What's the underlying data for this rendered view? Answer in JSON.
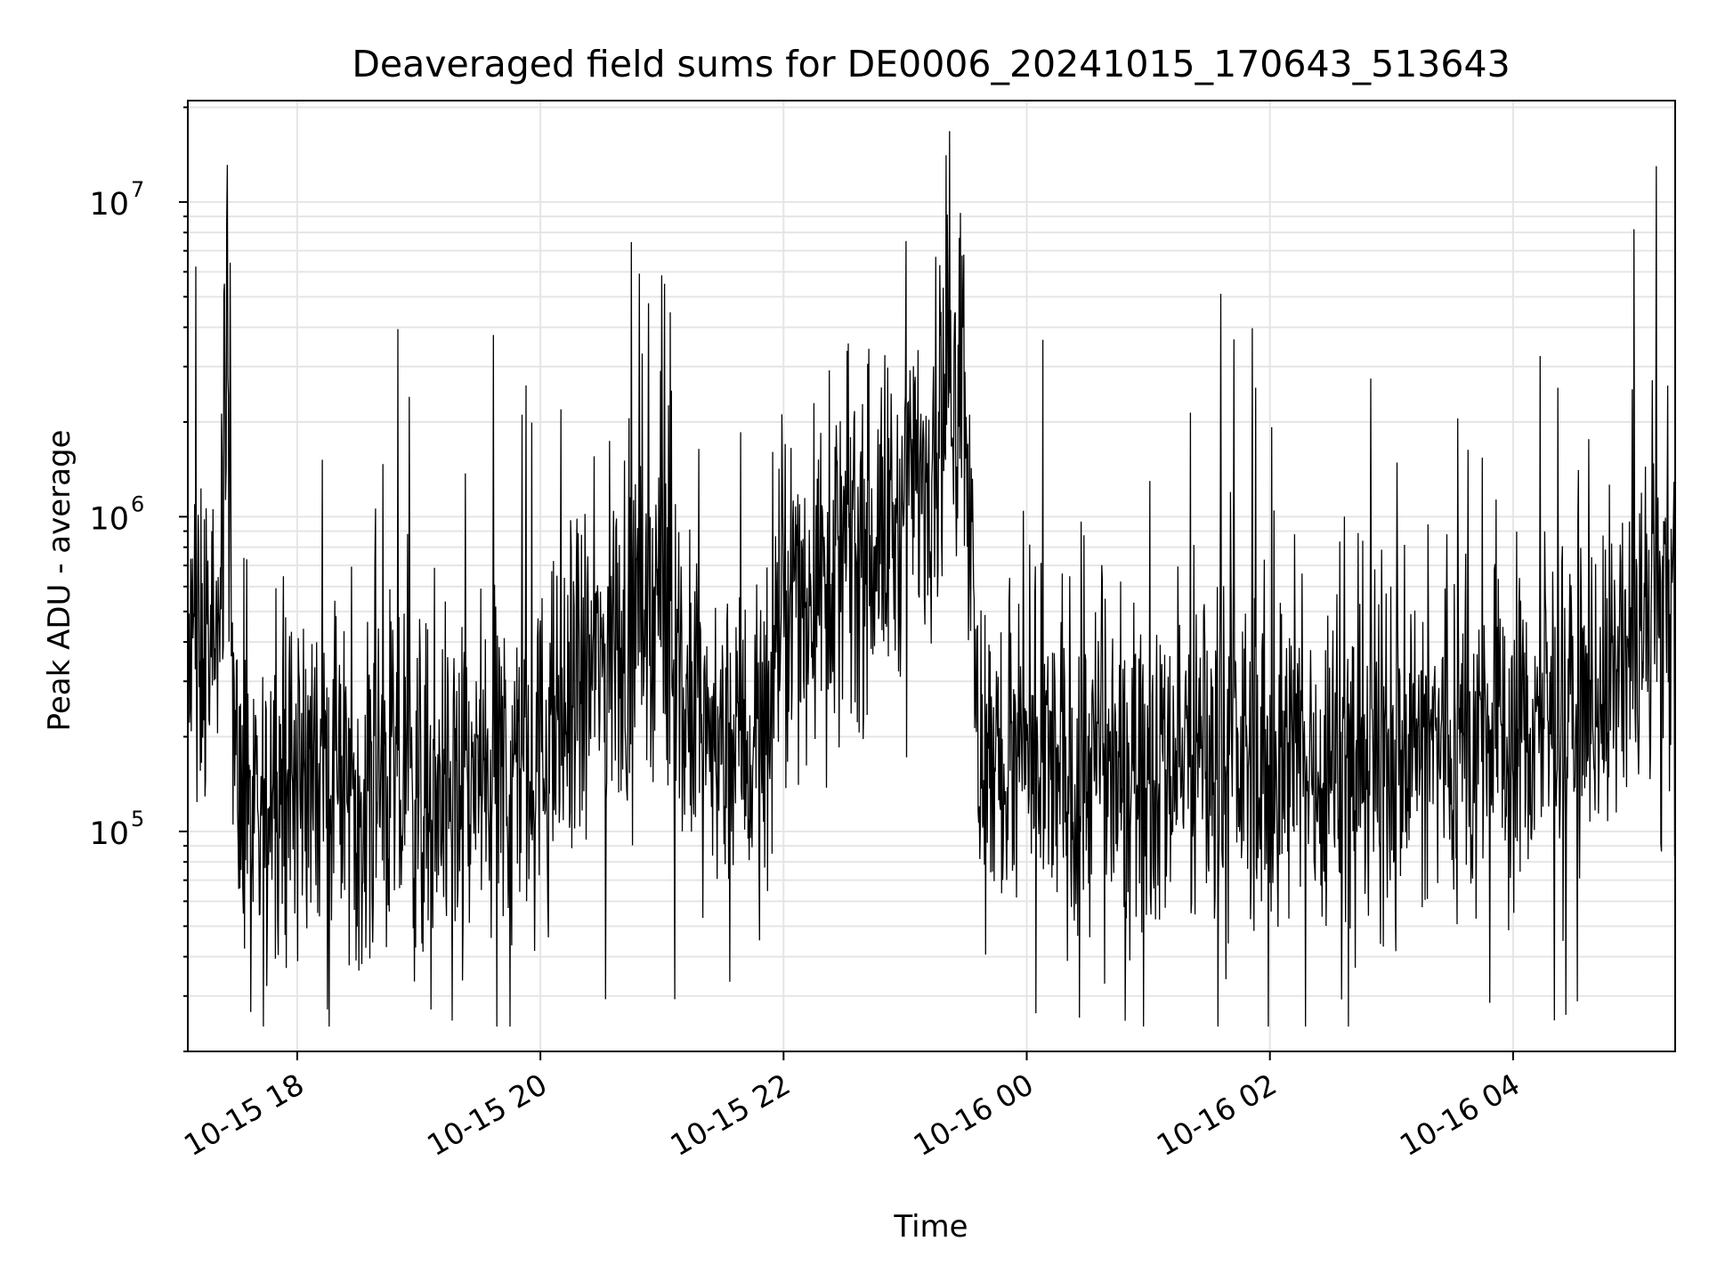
{
  "chart_data": {
    "type": "line",
    "title": "Deaveraged field sums for DE0006_20241015_170643_513643",
    "xlabel": "Time",
    "ylabel": "Peak ADU - average",
    "yscale": "log",
    "ylim": [
      20000,
      21000000
    ],
    "xlim": [
      "2024-10-15 17:06",
      "2024-10-16 05:20"
    ],
    "grid": true,
    "line_color": "#000000",
    "grid_color": "#e5e5e5",
    "x_ticks": [
      {
        "label": "10-15 18",
        "time": "2024-10-15 18:00"
      },
      {
        "label": "10-15 20",
        "time": "2024-10-15 20:00"
      },
      {
        "label": "10-15 22",
        "time": "2024-10-15 22:00"
      },
      {
        "label": "10-16 00",
        "time": "2024-10-16 00:00"
      },
      {
        "label": "10-16 02",
        "time": "2024-10-16 02:00"
      },
      {
        "label": "10-16 04",
        "time": "2024-10-16 04:00"
      }
    ],
    "y_ticks": [
      {
        "base": "10",
        "exp": "5",
        "value": 100000
      },
      {
        "base": "10",
        "exp": "6",
        "value": 1000000
      },
      {
        "base": "10",
        "exp": "7",
        "value": 10000000
      }
    ],
    "series": [
      {
        "values_note": "",
        "points": [
          [
            "2024-10-15 17:06",
            300000
          ],
          [
            "2024-10-15 17:15",
            450000
          ],
          [
            "2024-10-15 17:20",
            250000
          ],
          [
            "2024-10-15 17:25",
            3200000
          ],
          [
            "2024-10-15 17:30",
            130000
          ],
          [
            "2024-10-15 17:40",
            80000
          ],
          [
            "2024-10-15 17:50",
            170000
          ],
          [
            "2024-10-15 18:00",
            160000
          ],
          [
            "2024-10-15 18:20",
            150000
          ],
          [
            "2024-10-15 18:40",
            140000
          ],
          [
            "2024-10-15 19:00",
            130000
          ],
          [
            "2024-10-15 19:20",
            140000
          ],
          [
            "2024-10-15 19:40",
            150000
          ],
          [
            "2024-10-15 20:00",
            170000
          ],
          [
            "2024-10-15 20:15",
            250000
          ],
          [
            "2024-10-15 20:30",
            350000
          ],
          [
            "2024-10-15 20:45",
            450000
          ],
          [
            "2024-10-15 20:58",
            600000
          ],
          [
            "2024-10-15 21:10",
            250000
          ],
          [
            "2024-10-15 21:30",
            180000
          ],
          [
            "2024-10-15 21:50",
            200000
          ],
          [
            "2024-10-15 22:00",
            500000
          ],
          [
            "2024-10-15 22:20",
            700000
          ],
          [
            "2024-10-15 22:40",
            800000
          ],
          [
            "2024-10-15 23:00",
            1000000
          ],
          [
            "2024-10-15 23:15",
            2000000
          ],
          [
            "2024-10-15 23:30",
            3000000
          ],
          [
            "2024-10-15 23:35",
            200000
          ],
          [
            "2024-10-15 23:45",
            160000
          ],
          [
            "2024-10-16 00:00",
            150000
          ],
          [
            "2024-10-16 00:30",
            160000
          ],
          [
            "2024-10-16 01:00",
            170000
          ],
          [
            "2024-10-16 01:30",
            180000
          ],
          [
            "2024-10-16 02:00",
            160000
          ],
          [
            "2024-10-16 02:30",
            170000
          ],
          [
            "2024-10-16 03:00",
            180000
          ],
          [
            "2024-10-16 03:30",
            190000
          ],
          [
            "2024-10-16 04:00",
            200000
          ],
          [
            "2024-10-16 04:30",
            250000
          ],
          [
            "2024-10-16 05:00",
            350000
          ],
          [
            "2024-10-16 05:20",
            600000
          ]
        ]
      }
    ]
  }
}
